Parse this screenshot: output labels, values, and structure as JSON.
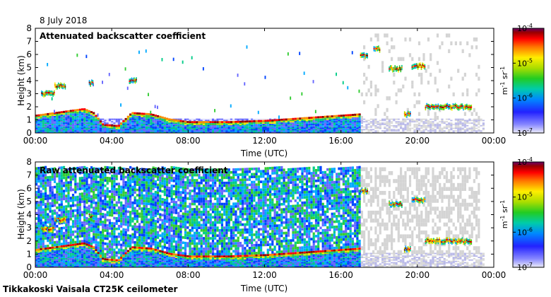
{
  "date_label": "8 July 2018",
  "footer_label": "Tikkakoski Vaisala CT25K ceilometer",
  "colormap": [
    "#e6e6ff",
    "#6666ff",
    "#0044ff",
    "#00aaff",
    "#00cc88",
    "#33cc33",
    "#aadd00",
    "#ffee00",
    "#ff8800",
    "#ff0000",
    "#990000",
    "#660066"
  ],
  "colorbar_ticks": [
    {
      "base": "10",
      "exp": "-4"
    },
    {
      "base": "10",
      "exp": "-5"
    },
    {
      "base": "10",
      "exp": "-6"
    },
    {
      "base": "10",
      "exp": "-7"
    }
  ],
  "colorbar_unit": {
    "m": "m",
    "m_exp": "-1",
    "sr": " sr",
    "sr_exp": "-1"
  },
  "chart_data": [
    {
      "type": "heatmap",
      "title": "Attenuated backscatter coefficient",
      "xlabel": "Time (UTC)",
      "ylabel": "Height (km)",
      "xlim": [
        0,
        24
      ],
      "ylim": [
        0,
        8
      ],
      "x_ticks": [
        "00:00",
        "04:00",
        "08:00",
        "12:00",
        "16:00",
        "20:00",
        "00:00"
      ],
      "y_ticks": [
        "0",
        "1",
        "2",
        "3",
        "4",
        "5",
        "6",
        "7",
        "8"
      ],
      "color_scale": {
        "min": "1e-7",
        "max": "1e-4",
        "scale": "log",
        "unit": "m-1 sr-1"
      },
      "boundary_layer_top_km": [
        [
          0,
          1.3
        ],
        [
          1.5,
          1.6
        ],
        [
          2.5,
          1.8
        ],
        [
          3,
          1.5
        ],
        [
          3.5,
          0.6
        ],
        [
          4.3,
          0.5
        ],
        [
          5,
          1.5
        ],
        [
          6,
          1.4
        ],
        [
          7,
          1.0
        ],
        [
          8,
          0.8
        ],
        [
          10,
          0.8
        ],
        [
          12,
          0.9
        ],
        [
          14,
          1.1
        ],
        [
          16,
          1.3
        ],
        [
          17,
          1.4
        ]
      ],
      "cloud_layers": [
        {
          "t_start": 0.3,
          "t_end": 1.0,
          "height_km": 3.0
        },
        {
          "t_start": 1.0,
          "t_end": 1.6,
          "height_km": 3.6
        },
        {
          "t_start": 2.8,
          "t_end": 3.0,
          "height_km": 3.8
        },
        {
          "t_start": 4.9,
          "t_end": 5.3,
          "height_km": 4.0
        },
        {
          "t_start": 17.0,
          "t_end": 17.4,
          "height_km": 5.9
        },
        {
          "t_start": 17.7,
          "t_end": 18.0,
          "height_km": 6.4
        },
        {
          "t_start": 18.5,
          "t_end": 19.2,
          "height_km": 4.9
        },
        {
          "t_start": 19.7,
          "t_end": 20.4,
          "height_km": 5.1
        },
        {
          "t_start": 20.4,
          "t_end": 22.8,
          "height_km": 2.0
        },
        {
          "t_start": 19.3,
          "t_end": 19.6,
          "height_km": 1.4
        }
      ]
    },
    {
      "type": "heatmap",
      "title": "Raw attenuated backscatter coefficient",
      "xlabel": "Time (UTC)",
      "ylabel": "Height (km)",
      "xlim": [
        0,
        24
      ],
      "ylim": [
        0,
        8
      ],
      "x_ticks": [
        "00:00",
        "04:00",
        "08:00",
        "12:00",
        "16:00",
        "20:00",
        "00:00"
      ],
      "y_ticks": [
        "0",
        "1",
        "2",
        "3",
        "4",
        "5",
        "6",
        "7",
        "8"
      ],
      "color_scale": {
        "min": "1e-7",
        "max": "1e-4",
        "scale": "log",
        "unit": "m-1 sr-1"
      },
      "noise_top_km": 7.5,
      "noise_end_hour": 17.0,
      "boundary_layer_top_km": [
        [
          0,
          1.3
        ],
        [
          1.5,
          1.6
        ],
        [
          2.5,
          1.8
        ],
        [
          3,
          1.5
        ],
        [
          3.5,
          0.6
        ],
        [
          4.3,
          0.5
        ],
        [
          5,
          1.5
        ],
        [
          6,
          1.4
        ],
        [
          7,
          1.0
        ],
        [
          8,
          0.8
        ],
        [
          10,
          0.8
        ],
        [
          12,
          0.9
        ],
        [
          14,
          1.1
        ],
        [
          16,
          1.3
        ],
        [
          17,
          1.4
        ]
      ],
      "cloud_layers": [
        {
          "t_start": 0.3,
          "t_end": 1.0,
          "height_km": 2.9
        },
        {
          "t_start": 1.0,
          "t_end": 1.6,
          "height_km": 3.6
        },
        {
          "t_start": 2.8,
          "t_end": 3.0,
          "height_km": 3.9
        },
        {
          "t_start": 17.0,
          "t_end": 17.4,
          "height_km": 5.8
        },
        {
          "t_start": 18.5,
          "t_end": 19.2,
          "height_km": 4.8
        },
        {
          "t_start": 19.7,
          "t_end": 20.4,
          "height_km": 5.1
        },
        {
          "t_start": 20.4,
          "t_end": 22.8,
          "height_km": 2.0
        },
        {
          "t_start": 19.3,
          "t_end": 19.6,
          "height_km": 1.4
        }
      ]
    }
  ]
}
